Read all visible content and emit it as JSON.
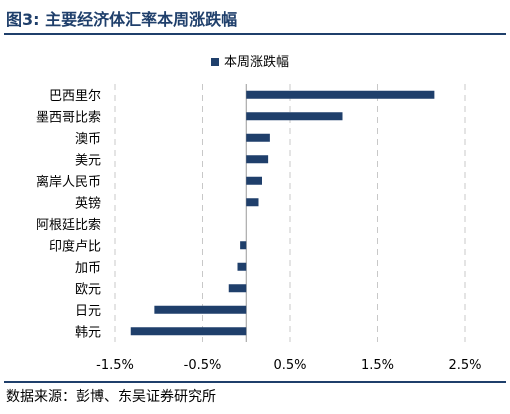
{
  "title": "图3:  主要经济体汇率本周涨跌幅",
  "source": "数据来源：彭博、东吴证券研究所",
  "chart_data": {
    "type": "bar",
    "orientation": "horizontal",
    "categories": [
      "巴西里尔",
      "墨西哥比索",
      "澳币",
      "美元",
      "离岸人民币",
      "英镑",
      "阿根廷比索",
      "印度卢比",
      "加币",
      "欧元",
      "日元",
      "韩元"
    ],
    "series": [
      {
        "name": "本周涨跌幅",
        "values": [
          2.15,
          1.1,
          0.27,
          0.25,
          0.18,
          0.14,
          0.0,
          -0.07,
          -0.1,
          -0.2,
          -1.05,
          -1.32
        ]
      }
    ],
    "xlim": [
      -1.5,
      2.5
    ],
    "xticks": [
      -1.5,
      -0.5,
      0.5,
      1.5,
      2.5
    ],
    "tick_labels": [
      "-1.5%",
      "-0.5%",
      "0.5%",
      "1.5%",
      "2.5%"
    ],
    "legend_position": "top",
    "grid": "vertical-dashed",
    "bar_color": "#1f3f6b"
  }
}
